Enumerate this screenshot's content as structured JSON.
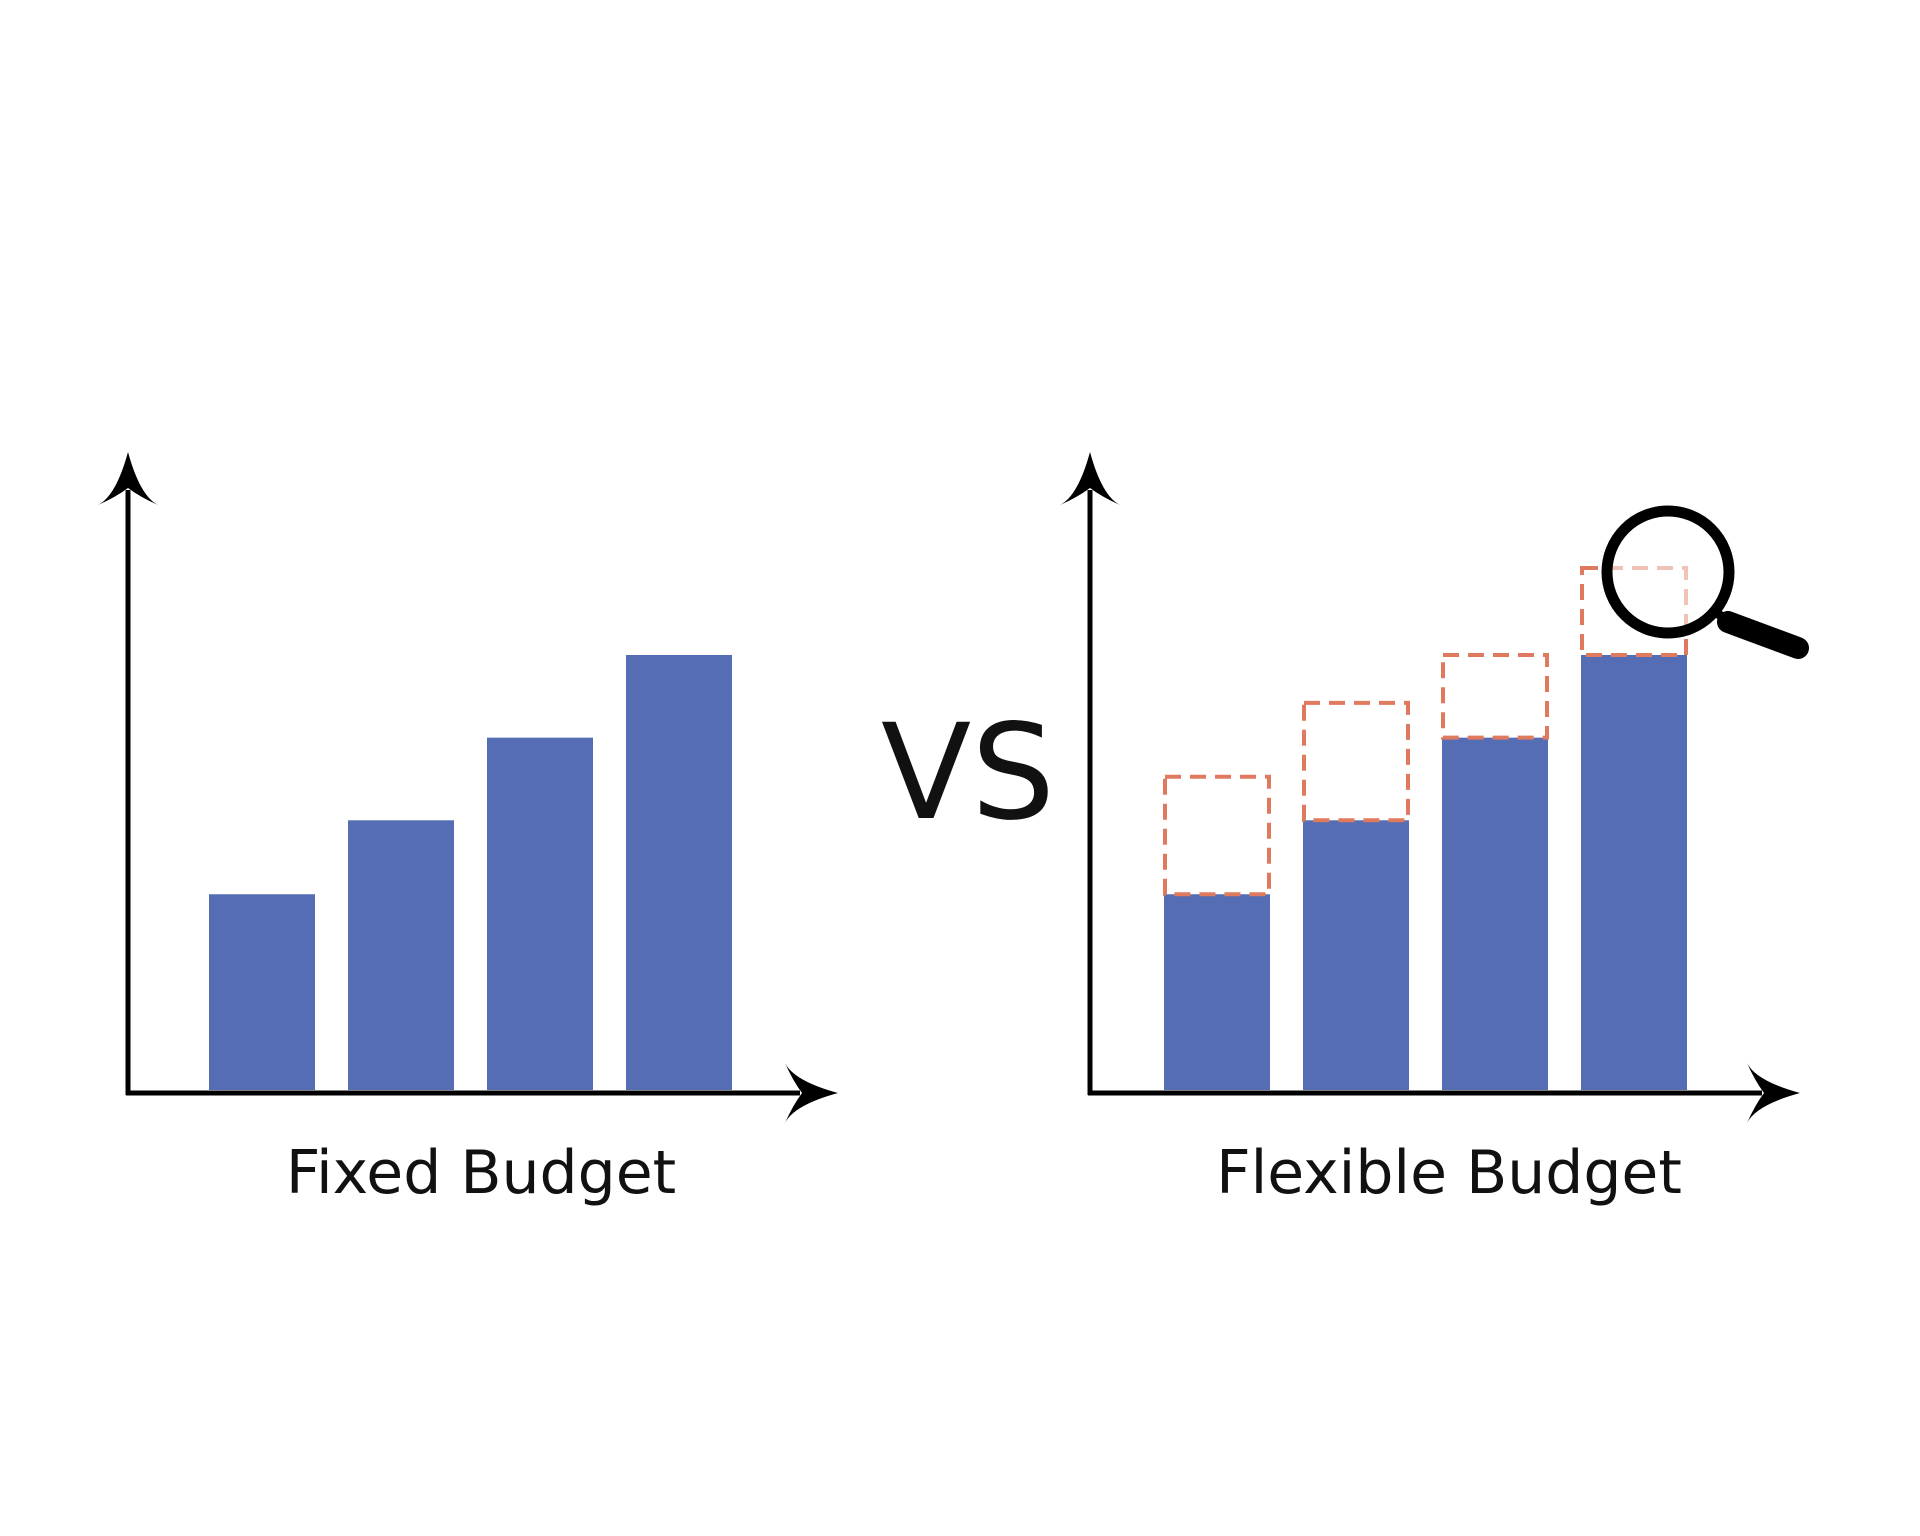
{
  "colors": {
    "bar": "#546db5",
    "dashed_outline": "#e07a5f",
    "axis": "#000000",
    "text": "#111111"
  },
  "vs_label": "VS",
  "chart_data": [
    {
      "type": "bar",
      "caption": "Fixed Budget",
      "categories": [
        "",
        "",
        "",
        ""
      ],
      "values": [
        0.45,
        0.62,
        0.81,
        1.0
      ],
      "grid": false,
      "axis_arrows": true
    },
    {
      "type": "bar",
      "caption": "Flexible Budget",
      "categories": [
        "",
        "",
        "",
        ""
      ],
      "values": [
        0.45,
        0.62,
        0.81,
        1.0
      ],
      "flexible_ranges": [
        0.72,
        0.89,
        1.0,
        1.2
      ],
      "grid": false,
      "axis_arrows": true,
      "icon": "magnifying-glass-icon"
    }
  ]
}
